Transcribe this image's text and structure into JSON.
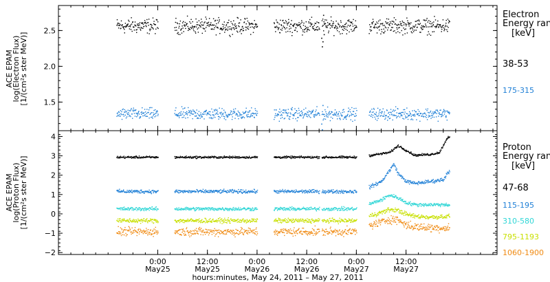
{
  "chart_data": [
    {
      "type": "scatter",
      "panel": "electron",
      "ylabel": [
        "ACE EPAM",
        "log(Electron Flux)",
        "[1/(cm²s ster MeV)]"
      ],
      "ylim": [
        1.1,
        2.85
      ],
      "yticks": [
        1.5,
        2.0,
        2.5
      ],
      "ytick_labels": [
        "1.5",
        "2.0",
        "2.5"
      ],
      "legend_title": [
        "Electron",
        "Energy ran",
        "[keV]"
      ],
      "series": [
        {
          "name": "38-53",
          "color": "#000000",
          "mean": 2.57,
          "spread": 0.09
        },
        {
          "name": "175-315",
          "color": "#1e7fd6",
          "mean": 1.34,
          "spread": 0.07
        }
      ],
      "special_events": [
        {
          "series": "38-53",
          "x": 63.5,
          "values": [
            2.4,
            2.28,
            2.35,
            2.72,
            2.45
          ]
        },
        {
          "series": "175-315",
          "x": 63.5,
          "values": [
            1.2,
            1.12,
            1.46
          ]
        }
      ]
    },
    {
      "type": "scatter",
      "panel": "proton",
      "ylabel": [
        "ACE EPAM",
        "log(Proton Flux)",
        "[1/(cm²s ster MeV)]"
      ],
      "ylim": [
        -2.1,
        4.3
      ],
      "yticks": [
        -2,
        -1,
        0,
        1,
        2,
        3,
        4
      ],
      "ytick_labels": [
        "−2",
        "−1",
        "0",
        "1",
        "2",
        "3",
        "4"
      ],
      "legend_title": [
        "Proton",
        "Energy ran",
        "[keV]"
      ],
      "series": [
        {
          "name": "47-68",
          "color": "#000000",
          "mean": 2.95,
          "spread": 0.05,
          "tail": [
            [
              74,
              3.0
            ],
            [
              80,
              3.2
            ],
            [
              82,
              3.55
            ],
            [
              84,
              3.3
            ],
            [
              86,
              3.05
            ],
            [
              90,
              3.1
            ],
            [
              92,
              3.2
            ],
            [
              93,
              3.6
            ],
            [
              94,
              4.0
            ]
          ]
        },
        {
          "name": "115-195",
          "color": "#1e7fd6",
          "mean": 1.18,
          "spread": 0.08,
          "tail": [
            [
              74,
              1.3
            ],
            [
              78,
              1.7
            ],
            [
              80,
              2.3
            ],
            [
              81,
              2.6
            ],
            [
              82,
              2.1
            ],
            [
              84,
              1.7
            ],
            [
              86,
              1.6
            ],
            [
              90,
              1.7
            ],
            [
              93,
              1.8
            ],
            [
              94,
              2.2
            ]
          ]
        },
        {
          "name": "310-580",
          "color": "#2fd6d6",
          "mean": 0.28,
          "spread": 0.08,
          "tail": [
            [
              74,
              0.45
            ],
            [
              78,
              0.75
            ],
            [
              80,
              1.0
            ],
            [
              82,
              0.85
            ],
            [
              84,
              0.6
            ],
            [
              86,
              0.5
            ],
            [
              90,
              0.5
            ],
            [
              94,
              0.5
            ]
          ]
        },
        {
          "name": "795-1193",
          "color": "#c8e000",
          "mean": -0.33,
          "spread": 0.1,
          "tail": [
            [
              74,
              -0.15
            ],
            [
              78,
              0.1
            ],
            [
              80,
              0.25
            ],
            [
              82,
              0.2
            ],
            [
              84,
              0.0
            ],
            [
              86,
              -0.1
            ],
            [
              90,
              -0.15
            ],
            [
              94,
              -0.1
            ]
          ]
        },
        {
          "name": "1060-1900",
          "color": "#f08a12",
          "mean": -0.9,
          "spread": 0.18,
          "tail": [
            [
              74,
              -0.65
            ],
            [
              78,
              -0.4
            ],
            [
              80,
              -0.25
            ],
            [
              82,
              -0.3
            ],
            [
              84,
              -0.55
            ],
            [
              86,
              -0.65
            ],
            [
              90,
              -0.7
            ],
            [
              94,
              -0.7
            ]
          ]
        }
      ]
    }
  ],
  "x_axis": {
    "label": "hours:minutes, May 24, 2011 – May 27, 2011",
    "xlim": [
      0,
      106
    ],
    "unit": "hours since May 24 00:00",
    "ticks": [
      {
        "x": 24,
        "time": "0:00",
        "date": "May25"
      },
      {
        "x": 36,
        "time": "12:00",
        "date": "May25"
      },
      {
        "x": 48,
        "time": "0:00",
        "date": "May26"
      },
      {
        "x": 60,
        "time": "12:00",
        "date": "May26"
      },
      {
        "x": 72,
        "time": "0:00",
        "date": "May27"
      },
      {
        "x": 84,
        "time": "12:00",
        "date": "May27"
      }
    ],
    "data_segments": [
      [
        14,
        24
      ],
      [
        28,
        48
      ],
      [
        52,
        63
      ],
      [
        63.6,
        72
      ],
      [
        75,
        94.5
      ]
    ]
  }
}
